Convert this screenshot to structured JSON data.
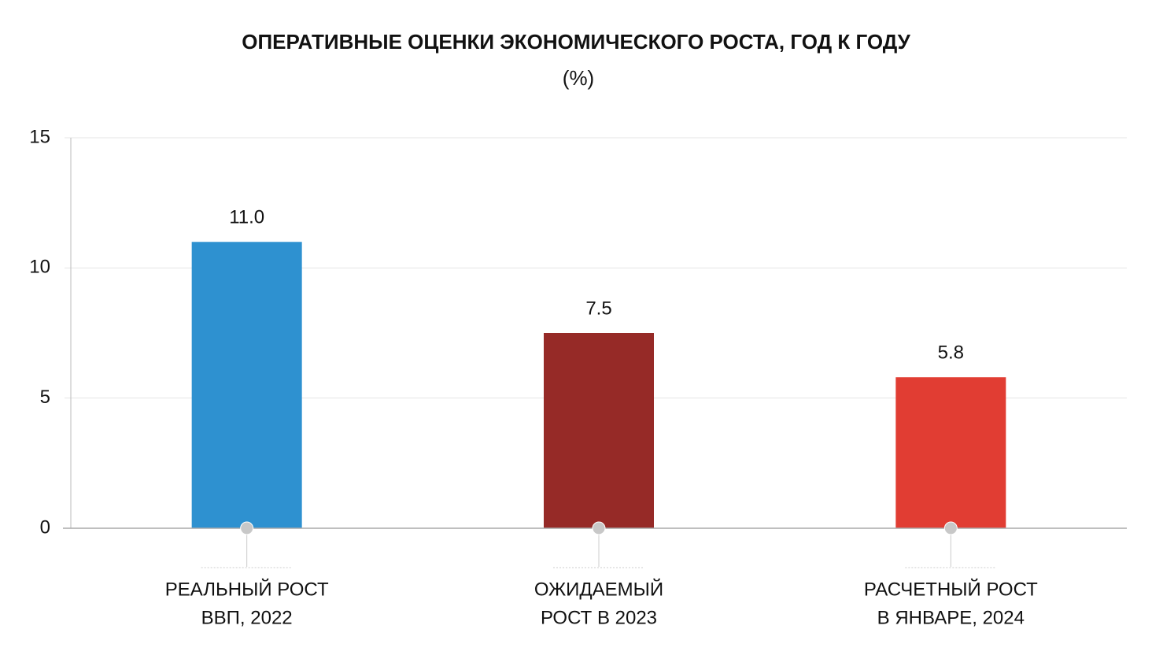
{
  "chart_data": {
    "type": "bar",
    "title": "ОПЕРАТИВНЫЕ ОЦЕНКИ ЭКОНОМИЧЕСКОГО РОСТА, ГОД К ГОДУ",
    "subtitle": "(%)",
    "categories": [
      [
        "РЕАЛЬНЫЙ РОСТ",
        "ВВП, 2022"
      ],
      [
        "ОЖИДАЕМЫЙ",
        "РОСТ В 2023"
      ],
      [
        "РАСЧЕТНЫЙ РОСТ",
        "В ЯНВАРЕ, 2024"
      ]
    ],
    "values": [
      11,
      7.5,
      5.8
    ],
    "value_labels": [
      "11.0",
      "7.5",
      "5.8"
    ],
    "colors": [
      "#2e91d0",
      "#962a27",
      "#e13d33"
    ],
    "ylim": [
      0,
      15
    ],
    "yticks": [
      0,
      5,
      10,
      15
    ],
    "grid": true
  }
}
